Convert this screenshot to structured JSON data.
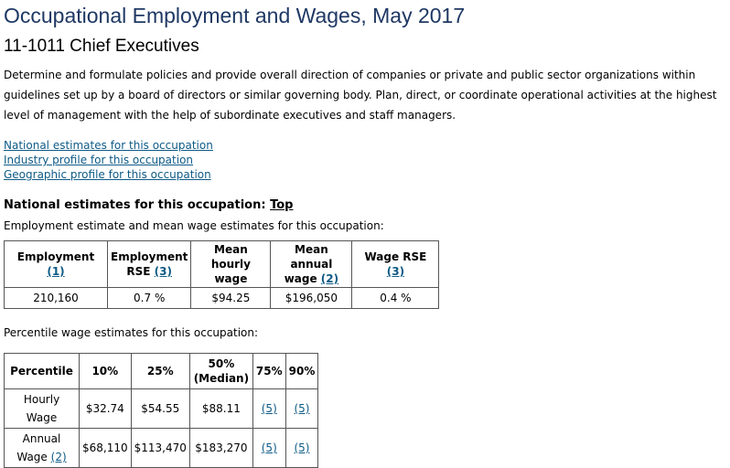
{
  "page": {
    "title": "Occupational Employment and Wages, May 2017",
    "occupation": "11-1011 Chief Executives",
    "description": "Determine and formulate policies and provide overall direction of companies or private and public sector organizations within guidelines set up by a board of directors or similar governing body. Plan, direct, or coordinate operational activities at the highest level of management with the help of subordinate executives and staff managers."
  },
  "links": [
    "National estimates for this occupation",
    "Industry profile for this occupation",
    "Geographic profile for this occupation"
  ],
  "national": {
    "heading": "National estimates for this occupation:",
    "top_link": "Top",
    "subtitle": "Employment estimate and mean wage estimates for this occupation:",
    "headers": {
      "employment": "Employment",
      "employment_fn": "(1)",
      "emp_rse": "Employment RSE",
      "emp_rse_fn": "(3)",
      "mean_hourly": "Mean hourly wage",
      "mean_annual": "Mean annual wage",
      "mean_annual_fn": "(2)",
      "wage_rse": "Wage RSE",
      "wage_rse_fn": "(3)"
    },
    "values": {
      "employment": "210,160",
      "emp_rse": "0.7 %",
      "mean_hourly": "$94.25",
      "mean_annual": "$196,050",
      "wage_rse": "0.4 %"
    }
  },
  "percentile": {
    "subtitle": "Percentile wage estimates for this occupation:",
    "headers": [
      "Percentile",
      "10%",
      "25%",
      "50% (Median)",
      "75%",
      "90%"
    ],
    "hourly": {
      "label": "Hourly Wage",
      "values": [
        "$32.74",
        "$54.55",
        "$88.11"
      ],
      "fn75": "(5)",
      "fn90": "(5)"
    },
    "annual": {
      "label": "Annual Wage",
      "label_fn": "(2)",
      "values": [
        "$68,110",
        "$113,470",
        "$183,270"
      ],
      "fn75": "(5)",
      "fn90": "(5)"
    }
  }
}
